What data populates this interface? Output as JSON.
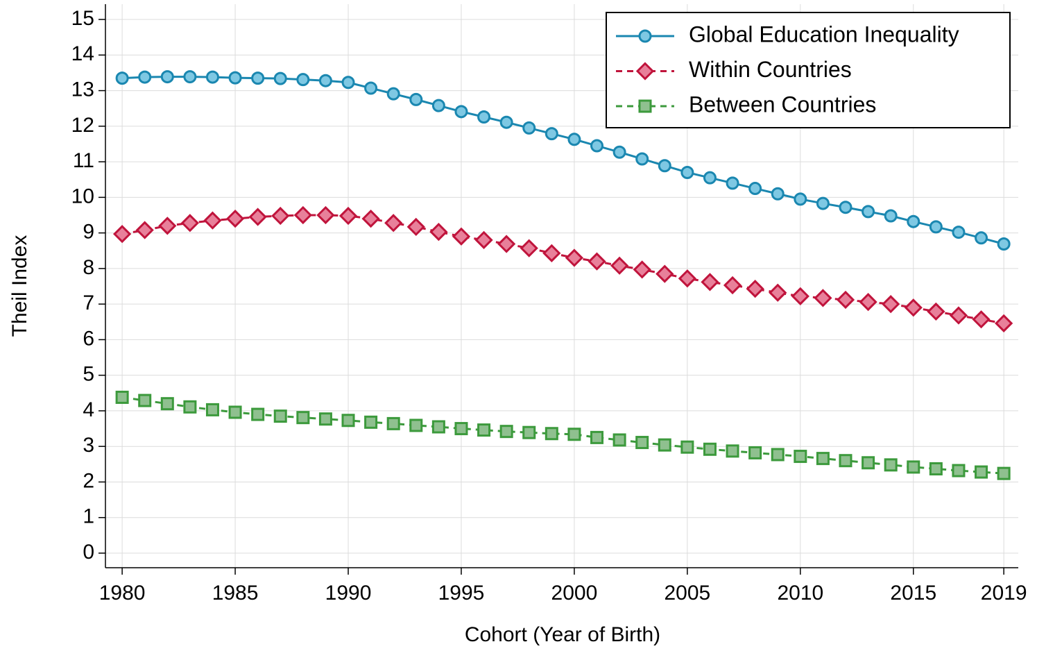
{
  "chart_data": {
    "type": "line",
    "x_label": "Cohort (Year of Birth)",
    "y_label": "Theil Index",
    "x": [
      1980,
      1981,
      1982,
      1983,
      1984,
      1985,
      1986,
      1987,
      1988,
      1989,
      1990,
      1991,
      1992,
      1993,
      1994,
      1995,
      1996,
      1997,
      1998,
      1999,
      2000,
      2001,
      2002,
      2003,
      2004,
      2005,
      2006,
      2007,
      2008,
      2009,
      2010,
      2011,
      2012,
      2013,
      2014,
      2015,
      2016,
      2017,
      2018,
      2019
    ],
    "series": [
      {
        "name": "Global Education Inequality",
        "color": "#1a87b0",
        "fill": "#7ec8e3",
        "marker": "circle",
        "dashed": false,
        "values": [
          13.35,
          13.38,
          13.39,
          13.39,
          13.38,
          13.36,
          13.35,
          13.34,
          13.31,
          13.28,
          13.23,
          13.07,
          12.91,
          12.75,
          12.58,
          12.41,
          12.26,
          12.11,
          11.95,
          11.79,
          11.63,
          11.45,
          11.27,
          11.08,
          10.89,
          10.7,
          10.55,
          10.4,
          10.25,
          10.1,
          9.95,
          9.83,
          9.72,
          9.6,
          9.48,
          9.32,
          9.17,
          9.02,
          8.86,
          8.69
        ]
      },
      {
        "name": "Within Countries",
        "color": "#c0143c",
        "fill": "#e8809a",
        "marker": "diamond",
        "dashed": true,
        "values": [
          8.97,
          9.08,
          9.2,
          9.28,
          9.35,
          9.4,
          9.45,
          9.48,
          9.5,
          9.5,
          9.48,
          9.4,
          9.28,
          9.17,
          9.03,
          8.9,
          8.8,
          8.69,
          8.57,
          8.43,
          8.3,
          8.2,
          8.08,
          7.97,
          7.85,
          7.72,
          7.62,
          7.53,
          7.43,
          7.32,
          7.22,
          7.17,
          7.12,
          7.06,
          7.0,
          6.9,
          6.79,
          6.68,
          6.57,
          6.46
        ]
      },
      {
        "name": "Between Countries",
        "color": "#3c9a3c",
        "fill": "#8fc08f",
        "marker": "square",
        "dashed": true,
        "values": [
          4.38,
          4.29,
          4.2,
          4.11,
          4.03,
          3.96,
          3.9,
          3.85,
          3.81,
          3.77,
          3.73,
          3.68,
          3.64,
          3.59,
          3.55,
          3.5,
          3.46,
          3.42,
          3.39,
          3.36,
          3.34,
          3.25,
          3.18,
          3.11,
          3.04,
          2.98,
          2.92,
          2.87,
          2.82,
          2.77,
          2.72,
          2.66,
          2.6,
          2.54,
          2.48,
          2.42,
          2.37,
          2.32,
          2.28,
          2.24
        ]
      }
    ],
    "xlim": [
      1979.26,
      2019.64
    ],
    "xticks": [
      1980,
      1985,
      1990,
      1995,
      2000,
      2005,
      2010,
      2015,
      2019
    ],
    "ylim": [
      -0.41,
      15.43
    ],
    "yticks": [
      0,
      1,
      2,
      3,
      4,
      5,
      6,
      7,
      8,
      9,
      10,
      11,
      12,
      13,
      14,
      15
    ],
    "grid": true,
    "legend": "upper right"
  }
}
